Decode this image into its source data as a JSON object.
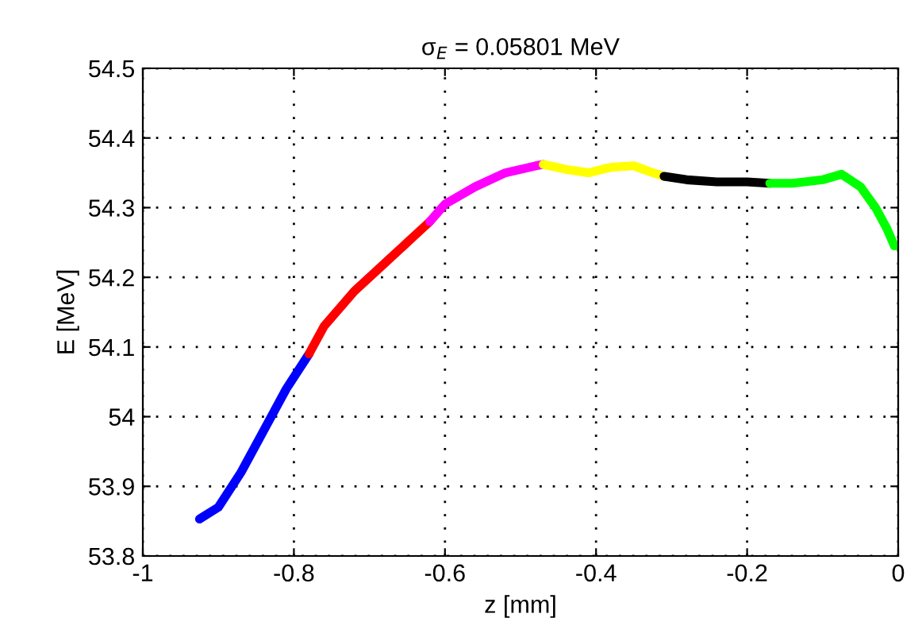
{
  "chart_data": {
    "type": "line",
    "title": "σ$_{E}$ = 0.05801 MeV",
    "xlabel": "z [mm]",
    "ylabel": "E [MeV]",
    "xlim": [
      -1,
      0
    ],
    "xticks": [
      {
        "value": -1,
        "label": "-1"
      },
      {
        "value": -0.8,
        "label": "-0.8"
      },
      {
        "value": -0.6,
        "label": "-0.6"
      },
      {
        "value": -0.4,
        "label": "-0.4"
      },
      {
        "value": -0.2,
        "label": "-0.2"
      },
      0
    ],
    "ylim": [
      53.8,
      54.5
    ],
    "yticks": [
      53.8,
      53.9,
      54,
      54.1,
      54.2,
      54.3,
      54.4,
      54.5
    ],
    "grid": true,
    "line_style": "solid",
    "marker": "none",
    "series": [
      {
        "color": "#0000ff",
        "x": [
          -0.925,
          -0.9,
          -0.87,
          -0.84,
          -0.81,
          -0.78
        ],
        "values": [
          53.853,
          53.87,
          53.92,
          53.98,
          54.04,
          54.09
        ]
      },
      {
        "color": "#ff0000",
        "x": [
          -0.78,
          -0.76,
          -0.72,
          -0.68,
          -0.64,
          -0.62
        ],
        "values": [
          54.09,
          54.13,
          54.18,
          54.22,
          54.26,
          54.28
        ]
      },
      {
        "color": "#ff00ff",
        "x": [
          -0.62,
          -0.6,
          -0.56,
          -0.52,
          -0.48,
          -0.47
        ],
        "values": [
          54.28,
          54.305,
          54.33,
          54.35,
          54.36,
          54.362
        ]
      },
      {
        "color": "#ffff00",
        "x": [
          -0.47,
          -0.44,
          -0.41,
          -0.38,
          -0.35,
          -0.33,
          -0.31
        ],
        "values": [
          54.362,
          54.355,
          54.35,
          54.358,
          54.36,
          54.352,
          54.345
        ]
      },
      {
        "color": "#000000",
        "x": [
          -0.31,
          -0.28,
          -0.24,
          -0.2,
          -0.17
        ],
        "values": [
          54.345,
          54.34,
          54.337,
          54.337,
          54.335
        ]
      },
      {
        "color": "#00ff00",
        "x": [
          -0.17,
          -0.14,
          -0.1,
          -0.075,
          -0.05,
          -0.03,
          -0.015,
          -0.005
        ],
        "values": [
          54.335,
          54.335,
          54.34,
          54.348,
          54.33,
          54.3,
          54.27,
          54.245
        ]
      }
    ]
  }
}
